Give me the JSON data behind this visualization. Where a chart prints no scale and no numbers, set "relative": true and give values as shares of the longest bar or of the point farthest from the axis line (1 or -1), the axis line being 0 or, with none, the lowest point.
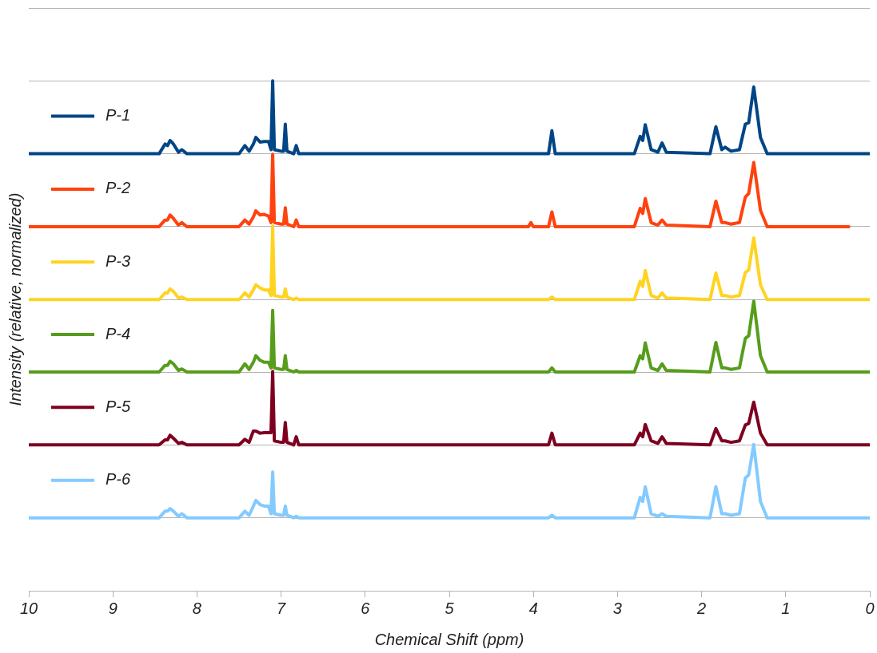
{
  "chart_data": {
    "type": "line",
    "relative": true,
    "xlabel": "Chemical Shift (ppm)",
    "ylabel": "Intensity (relative, normalized)",
    "xlim": [
      10,
      0
    ],
    "xticks": [
      10,
      9,
      8,
      7,
      6,
      5,
      4,
      3,
      2,
      1,
      0
    ],
    "grid": "y",
    "legend": "left",
    "tick_labels": "x",
    "marker": "none",
    "line_style": "solid",
    "x": [
      10,
      8.45,
      8.38,
      8.35,
      8.32,
      8.28,
      8.22,
      8.18,
      8.12,
      7.5,
      7.43,
      7.38,
      7.33,
      7.3,
      7.25,
      7.2,
      7.15,
      7.12,
      7.1,
      7.08,
      7.0,
      6.97,
      6.95,
      6.93,
      6.85,
      6.82,
      6.79,
      3.82,
      3.78,
      3.74,
      2.8,
      2.73,
      2.7,
      2.67,
      2.6,
      2.52,
      2.47,
      2.42,
      1.9,
      1.83,
      1.76,
      1.72,
      1.65,
      1.55,
      1.48,
      1.44,
      1.38,
      1.3,
      1.22,
      0
    ],
    "series": [
      {
        "name": "P-1",
        "color": "#004586",
        "values": [
          0.857,
          0.857,
          0.876,
          0.873,
          0.883,
          0.876,
          0.86,
          0.865,
          0.857,
          0.857,
          0.873,
          0.862,
          0.876,
          0.889,
          0.88,
          0.881,
          0.881,
          0.865,
          1,
          0.865,
          0.862,
          0.862,
          0.915,
          0.862,
          0.857,
          0.873,
          0.857,
          0.857,
          0.902,
          0.857,
          0.857,
          0.891,
          0.883,
          0.914,
          0.865,
          0.86,
          0.878,
          0.86,
          0.857,
          0.91,
          0.865,
          0.87,
          0.862,
          0.865,
          0.915,
          0.918,
          0.988,
          0.889,
          0.857,
          0.857
        ]
      },
      {
        "name": "P-2",
        "color": "#ff420e",
        "x": [
          10,
          8.45,
          8.38,
          8.35,
          8.32,
          8.28,
          8.22,
          8.18,
          8.12,
          7.5,
          7.43,
          7.38,
          7.33,
          7.3,
          7.25,
          7.2,
          7.15,
          7.12,
          7.1,
          7.08,
          7.0,
          6.97,
          6.95,
          6.93,
          6.85,
          6.82,
          6.79,
          4.06,
          4.03,
          4.0,
          3.82,
          3.78,
          3.74,
          2.8,
          2.73,
          2.7,
          2.67,
          2.6,
          2.52,
          2.47,
          2.42,
          1.9,
          1.83,
          1.76,
          1.72,
          1.65,
          1.55,
          1.48,
          1.44,
          1.38,
          1.3,
          1.22,
          0.25
        ],
        "values": [
          0.714,
          0.714,
          0.727,
          0.727,
          0.737,
          0.73,
          0.717,
          0.722,
          0.714,
          0.714,
          0.727,
          0.719,
          0.733,
          0.745,
          0.737,
          0.738,
          0.735,
          0.722,
          0.856,
          0.722,
          0.719,
          0.719,
          0.751,
          0.719,
          0.714,
          0.727,
          0.714,
          0.714,
          0.722,
          0.714,
          0.714,
          0.743,
          0.714,
          0.714,
          0.75,
          0.74,
          0.769,
          0.722,
          0.717,
          0.727,
          0.717,
          0.714,
          0.764,
          0.722,
          0.722,
          0.719,
          0.722,
          0.772,
          0.779,
          0.84,
          0.746,
          0.714,
          0.714
        ]
      },
      {
        "name": "P-3",
        "color": "#ffd320",
        "values": [
          0.571,
          0.571,
          0.584,
          0.584,
          0.592,
          0.587,
          0.574,
          0.576,
          0.571,
          0.571,
          0.584,
          0.576,
          0.59,
          0.6,
          0.594,
          0.59,
          0.59,
          0.579,
          0.715,
          0.579,
          0.576,
          0.576,
          0.592,
          0.576,
          0.571,
          0.574,
          0.571,
          0.571,
          0.576,
          0.571,
          0.571,
          0.607,
          0.597,
          0.628,
          0.579,
          0.574,
          0.584,
          0.574,
          0.571,
          0.623,
          0.579,
          0.579,
          0.576,
          0.579,
          0.624,
          0.629,
          0.692,
          0.6,
          0.571,
          0.571
        ]
      },
      {
        "name": "P-4",
        "color": "#579d1c",
        "values": [
          0.429,
          0.429,
          0.442,
          0.442,
          0.45,
          0.445,
          0.432,
          0.435,
          0.429,
          0.429,
          0.445,
          0.434,
          0.448,
          0.461,
          0.452,
          0.448,
          0.448,
          0.437,
          0.55,
          0.437,
          0.434,
          0.434,
          0.461,
          0.434,
          0.429,
          0.432,
          0.429,
          0.429,
          0.437,
          0.429,
          0.429,
          0.461,
          0.455,
          0.486,
          0.437,
          0.432,
          0.445,
          0.432,
          0.429,
          0.487,
          0.437,
          0.437,
          0.434,
          0.437,
          0.495,
          0.5,
          0.568,
          0.461,
          0.429,
          0.429
        ]
      },
      {
        "name": "P-5",
        "color": "#7e0021",
        "values": [
          0.286,
          0.286,
          0.296,
          0.296,
          0.305,
          0.299,
          0.289,
          0.291,
          0.286,
          0.286,
          0.297,
          0.291,
          0.313,
          0.313,
          0.309,
          0.31,
          0.31,
          0.31,
          0.43,
          0.294,
          0.291,
          0.291,
          0.33,
          0.291,
          0.286,
          0.302,
          0.286,
          0.286,
          0.309,
          0.286,
          0.286,
          0.309,
          0.302,
          0.326,
          0.294,
          0.289,
          0.302,
          0.289,
          0.286,
          0.318,
          0.294,
          0.294,
          0.291,
          0.294,
          0.325,
          0.328,
          0.37,
          0.309,
          0.286,
          0.286
        ]
      },
      {
        "name": "P-6",
        "color": "#83caff",
        "values": [
          0.143,
          0.143,
          0.156,
          0.156,
          0.161,
          0.156,
          0.146,
          0.151,
          0.143,
          0.143,
          0.156,
          0.148,
          0.166,
          0.177,
          0.169,
          0.166,
          0.166,
          0.151,
          0.233,
          0.151,
          0.148,
          0.148,
          0.166,
          0.148,
          0.143,
          0.146,
          0.143,
          0.143,
          0.148,
          0.143,
          0.143,
          0.183,
          0.175,
          0.204,
          0.151,
          0.146,
          0.151,
          0.146,
          0.143,
          0.204,
          0.151,
          0.151,
          0.148,
          0.151,
          0.221,
          0.227,
          0.287,
          0.175,
          0.143,
          0.143
        ]
      }
    ]
  }
}
